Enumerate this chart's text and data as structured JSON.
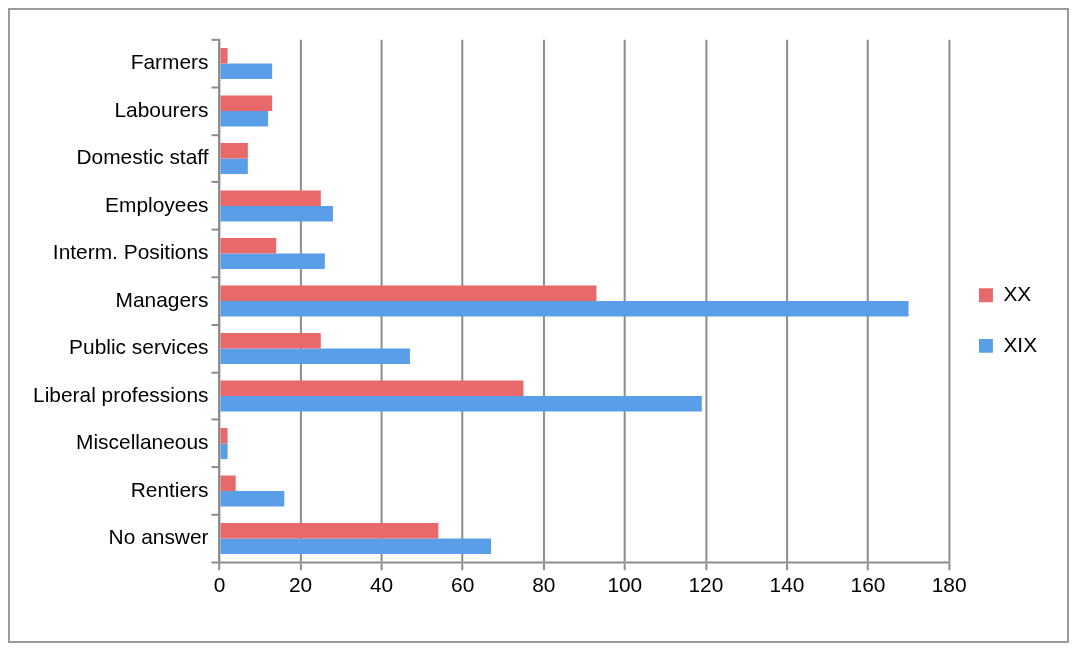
{
  "chart_data": {
    "type": "bar",
    "orientation": "horizontal",
    "categories": [
      "Farmers",
      "Labourers",
      "Domestic staff",
      "Employees",
      "Interm. Positions",
      "Managers",
      "Public services",
      "Liberal professions",
      "Miscellaneous",
      "Rentiers",
      "No answer"
    ],
    "series": [
      {
        "name": "XX",
        "color": "#e8696a",
        "values": [
          2,
          13,
          7,
          25,
          14,
          93,
          25,
          75,
          2,
          4,
          54
        ]
      },
      {
        "name": "XIX",
        "color": "#5b9ee8",
        "values": [
          13,
          12,
          7,
          28,
          26,
          170,
          47,
          119,
          2,
          16,
          67
        ]
      }
    ],
    "xlim": [
      0,
      180
    ],
    "xticks": [
      0,
      20,
      40,
      60,
      80,
      100,
      120,
      140,
      160,
      180
    ],
    "grid": "x",
    "legend": "right"
  }
}
